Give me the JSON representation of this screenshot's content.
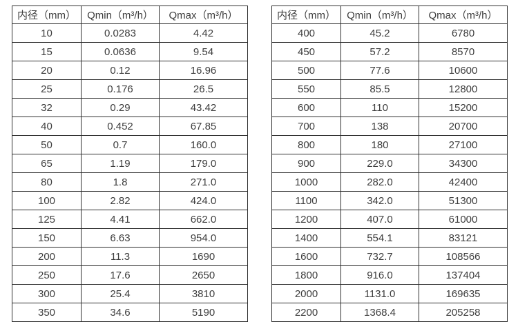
{
  "left_table": {
    "headers": [
      "内径（mm）",
      "Qmin（m³/h）",
      "Qmax（m³/h）"
    ],
    "rows": [
      [
        "10",
        "0.0283",
        "4.42"
      ],
      [
        "15",
        "0.0636",
        "9.54"
      ],
      [
        "20",
        "0.12",
        "16.96"
      ],
      [
        "25",
        "0.176",
        "26.5"
      ],
      [
        "32",
        "0.29",
        "43.42"
      ],
      [
        "40",
        "0.452",
        "67.85"
      ],
      [
        "50",
        "0.7",
        "160.0"
      ],
      [
        "65",
        "1.19",
        "179.0"
      ],
      [
        "80",
        "1.8",
        "271.0"
      ],
      [
        "100",
        "2.82",
        "424.0"
      ],
      [
        "125",
        "4.41",
        "662.0"
      ],
      [
        "150",
        "6.63",
        "954.0"
      ],
      [
        "200",
        "11.3",
        "1690"
      ],
      [
        "250",
        "17.6",
        "2650"
      ],
      [
        "300",
        "25.4",
        "3810"
      ],
      [
        "350",
        "34.6",
        "5190"
      ]
    ]
  },
  "right_table": {
    "headers": [
      "内径（mm）",
      "Qmin（m³/h）",
      "Qmax（m³/h）"
    ],
    "rows": [
      [
        "400",
        "45.2",
        "6780"
      ],
      [
        "450",
        "57.2",
        "8570"
      ],
      [
        "500",
        "77.6",
        "10600"
      ],
      [
        "550",
        "85.5",
        "12800"
      ],
      [
        "600",
        "110",
        "15200"
      ],
      [
        "700",
        "138",
        "20700"
      ],
      [
        "800",
        "180",
        "27100"
      ],
      [
        "900",
        "229.0",
        "34300"
      ],
      [
        "1000",
        "282.0",
        "42400"
      ],
      [
        "1100",
        "342.0",
        "51300"
      ],
      [
        "1200",
        "407.0",
        "61000"
      ],
      [
        "1400",
        "554.1",
        "83121"
      ],
      [
        "1600",
        "732.7",
        "108566"
      ],
      [
        "1800",
        "916.0",
        "137404"
      ],
      [
        "2000",
        "1131.0",
        "169635"
      ],
      [
        "2200",
        "1368.4",
        "205258"
      ]
    ]
  },
  "colors": {
    "border": "#2d2d2d",
    "text": "#3d3d3d",
    "background": "#ffffff"
  }
}
